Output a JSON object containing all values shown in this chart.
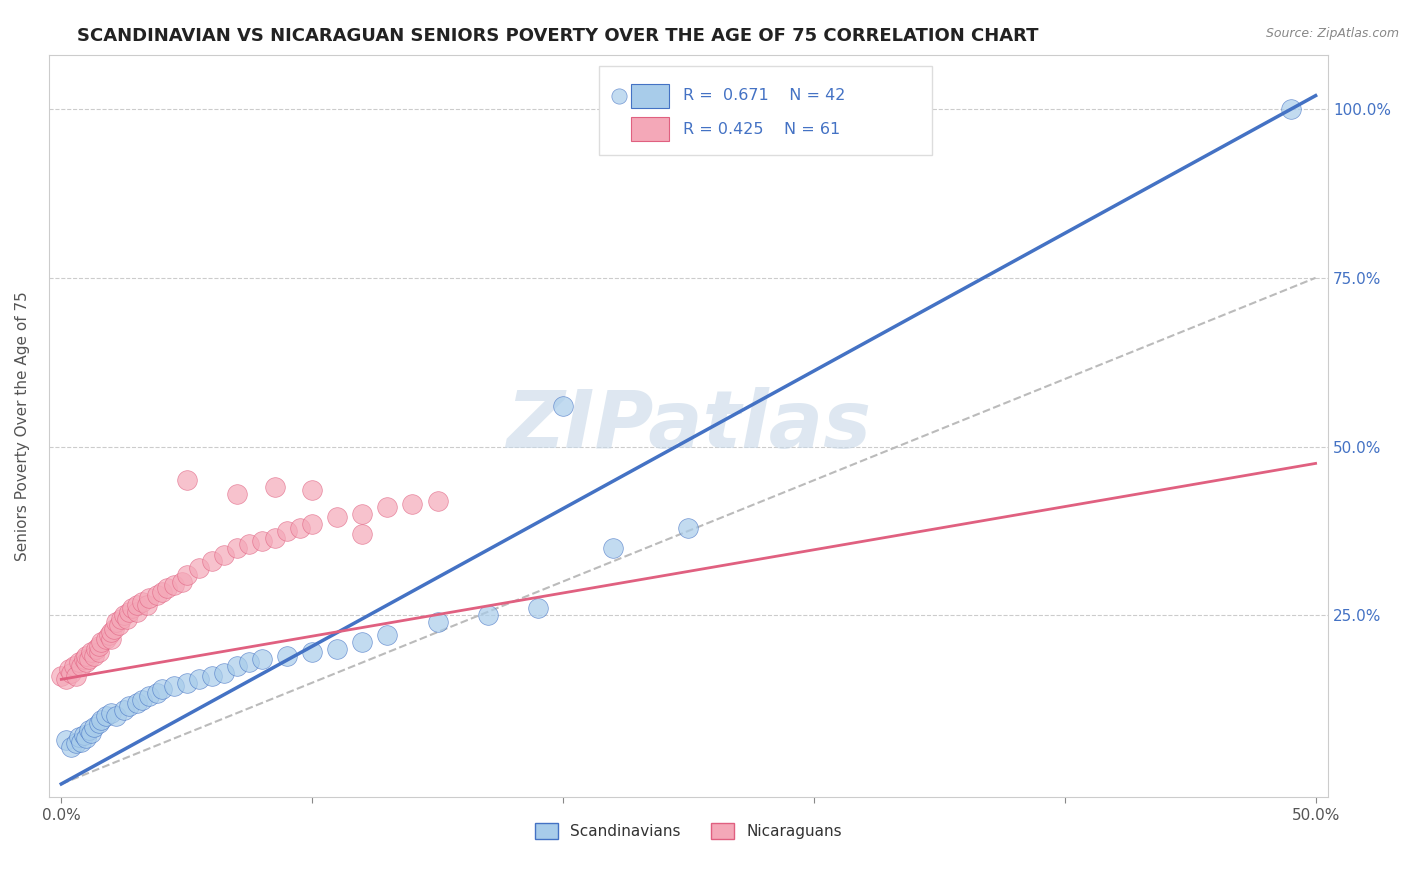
{
  "title": "SCANDINAVIAN VS NICARAGUAN SENIORS POVERTY OVER THE AGE OF 75 CORRELATION CHART",
  "source_text": "Source: ZipAtlas.com",
  "ylabel": "Seniors Poverty Over the Age of 75",
  "xlim": [
    -0.005,
    0.505
  ],
  "ylim": [
    -0.02,
    1.08
  ],
  "xticks": [
    0.0,
    0.1,
    0.2,
    0.3,
    0.4,
    0.5
  ],
  "xticklabels": [
    "0.0%",
    "",
    "",
    "",
    "",
    "50.0%"
  ],
  "yticks": [
    0.0,
    0.25,
    0.5,
    0.75,
    1.0
  ],
  "yticklabels_right": [
    "",
    "25.0%",
    "50.0%",
    "75.0%",
    "100.0%"
  ],
  "legend_R1": "R =  0.671",
  "legend_N1": "N = 42",
  "legend_R2": "R = 0.425",
  "legend_N2": "N = 61",
  "color_scand": "#A8CCEA",
  "color_nicar": "#F4A8B8",
  "color_line_scand": "#4472C4",
  "color_line_nicar": "#E06080",
  "color_ref_line": "#BBBBBB",
  "background_color": "#FFFFFF",
  "plot_bg_color": "#FFFFFF",
  "watermark": "ZIPatlas",
  "watermark_color": "#C8D8E8",
  "title_fontsize": 13,
  "axis_label_fontsize": 11,
  "tick_fontsize": 11,
  "scand_points": [
    [
      0.002,
      0.065
    ],
    [
      0.004,
      0.055
    ],
    [
      0.006,
      0.06
    ],
    [
      0.007,
      0.07
    ],
    [
      0.008,
      0.062
    ],
    [
      0.009,
      0.072
    ],
    [
      0.01,
      0.068
    ],
    [
      0.011,
      0.08
    ],
    [
      0.012,
      0.075
    ],
    [
      0.013,
      0.085
    ],
    [
      0.015,
      0.09
    ],
    [
      0.016,
      0.095
    ],
    [
      0.018,
      0.1
    ],
    [
      0.02,
      0.105
    ],
    [
      0.022,
      0.1
    ],
    [
      0.025,
      0.11
    ],
    [
      0.027,
      0.115
    ],
    [
      0.03,
      0.12
    ],
    [
      0.032,
      0.125
    ],
    [
      0.035,
      0.13
    ],
    [
      0.038,
      0.135
    ],
    [
      0.04,
      0.14
    ],
    [
      0.045,
      0.145
    ],
    [
      0.05,
      0.15
    ],
    [
      0.055,
      0.155
    ],
    [
      0.06,
      0.16
    ],
    [
      0.065,
      0.165
    ],
    [
      0.07,
      0.175
    ],
    [
      0.075,
      0.18
    ],
    [
      0.08,
      0.185
    ],
    [
      0.09,
      0.19
    ],
    [
      0.1,
      0.195
    ],
    [
      0.11,
      0.2
    ],
    [
      0.12,
      0.21
    ],
    [
      0.13,
      0.22
    ],
    [
      0.15,
      0.24
    ],
    [
      0.17,
      0.25
    ],
    [
      0.19,
      0.26
    ],
    [
      0.22,
      0.35
    ],
    [
      0.25,
      0.38
    ],
    [
      0.49,
      1.0
    ],
    [
      0.2,
      0.56
    ]
  ],
  "nicar_points": [
    [
      0.0,
      0.16
    ],
    [
      0.002,
      0.155
    ],
    [
      0.003,
      0.17
    ],
    [
      0.004,
      0.165
    ],
    [
      0.005,
      0.175
    ],
    [
      0.006,
      0.16
    ],
    [
      0.007,
      0.18
    ],
    [
      0.008,
      0.175
    ],
    [
      0.009,
      0.185
    ],
    [
      0.01,
      0.18
    ],
    [
      0.01,
      0.19
    ],
    [
      0.011,
      0.185
    ],
    [
      0.012,
      0.195
    ],
    [
      0.013,
      0.19
    ],
    [
      0.014,
      0.2
    ],
    [
      0.015,
      0.195
    ],
    [
      0.015,
      0.205
    ],
    [
      0.016,
      0.21
    ],
    [
      0.018,
      0.215
    ],
    [
      0.019,
      0.22
    ],
    [
      0.02,
      0.215
    ],
    [
      0.02,
      0.225
    ],
    [
      0.021,
      0.23
    ],
    [
      0.022,
      0.24
    ],
    [
      0.023,
      0.235
    ],
    [
      0.024,
      0.245
    ],
    [
      0.025,
      0.25
    ],
    [
      0.026,
      0.245
    ],
    [
      0.027,
      0.255
    ],
    [
      0.028,
      0.26
    ],
    [
      0.03,
      0.255
    ],
    [
      0.03,
      0.265
    ],
    [
      0.032,
      0.27
    ],
    [
      0.034,
      0.265
    ],
    [
      0.035,
      0.275
    ],
    [
      0.038,
      0.28
    ],
    [
      0.04,
      0.285
    ],
    [
      0.042,
      0.29
    ],
    [
      0.045,
      0.295
    ],
    [
      0.048,
      0.3
    ],
    [
      0.05,
      0.31
    ],
    [
      0.055,
      0.32
    ],
    [
      0.06,
      0.33
    ],
    [
      0.065,
      0.34
    ],
    [
      0.07,
      0.35
    ],
    [
      0.075,
      0.355
    ],
    [
      0.08,
      0.36
    ],
    [
      0.085,
      0.365
    ],
    [
      0.09,
      0.375
    ],
    [
      0.095,
      0.38
    ],
    [
      0.1,
      0.385
    ],
    [
      0.11,
      0.395
    ],
    [
      0.12,
      0.4
    ],
    [
      0.13,
      0.41
    ],
    [
      0.14,
      0.415
    ],
    [
      0.05,
      0.45
    ],
    [
      0.07,
      0.43
    ],
    [
      0.085,
      0.44
    ],
    [
      0.1,
      0.435
    ],
    [
      0.12,
      0.37
    ],
    [
      0.15,
      0.42
    ]
  ],
  "scand_line_x": [
    0.0,
    0.5
  ],
  "scand_line_y": [
    0.0,
    1.02
  ],
  "nicar_line_x": [
    0.0,
    0.5
  ],
  "nicar_line_y": [
    0.155,
    0.475
  ],
  "ref_line_x": [
    0.0,
    0.5
  ],
  "ref_line_y": [
    0.0,
    0.75
  ]
}
